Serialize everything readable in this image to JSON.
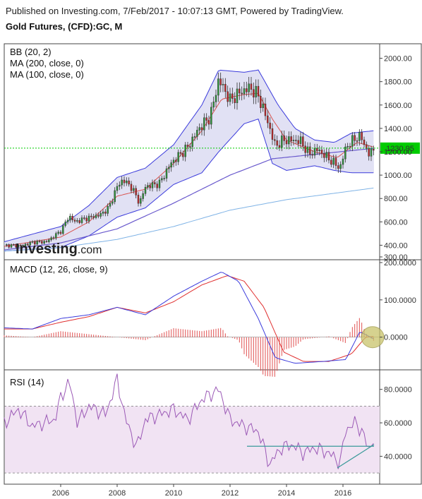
{
  "header": {
    "published": "Published on Investing.com, 7/Feb/2017 - 10:07:13 GMT, Powered by TradingView.",
    "title": "Gold Futures, (CFD):GC, M"
  },
  "watermark": {
    "brand": "Investing",
    "suffix": ".com"
  },
  "colors": {
    "up": "#2e9a3a",
    "down": "#c62828",
    "bb": "#3b3bdc",
    "bbFill": "#dcdcf2",
    "ma200": "#6a5acd",
    "ma100": "#7fb3e6",
    "ma20": "#d9534f",
    "macd": "#3b3bdc",
    "signal": "#e03030",
    "hist": "#e05050",
    "rsi": "#9b59b6",
    "rsiBand": "#f1e3f3",
    "trend": "#3a9a9a",
    "price": "#00cc00",
    "highlight": "#c9c36a"
  },
  "chart_data": [
    {
      "type": "candlestick",
      "legend": [
        "BB (20, 2)",
        "MA (200, close, 0)",
        "MA (100, close, 0)"
      ],
      "ylim": [
        300,
        2100
      ],
      "y_ticks": [
        "2000.00",
        "1800.00",
        "1600.00",
        "1400.00",
        "1200.00",
        "1000.00",
        "800.00",
        "600.00",
        "400.00",
        "300.00"
      ],
      "y_tick_values": [
        2000,
        1800,
        1600,
        1400,
        1200,
        1000,
        800,
        600,
        400,
        300
      ],
      "last_price": "1230.95",
      "last_value": 1230.95,
      "x_range": [
        2004.0,
        2017.2
      ],
      "close_anchors": [
        [
          2004.0,
          400
        ],
        [
          2004.6,
          395
        ],
        [
          2005.0,
          425
        ],
        [
          2005.5,
          430
        ],
        [
          2006.0,
          520
        ],
        [
          2006.3,
          650
        ],
        [
          2006.5,
          600
        ],
        [
          2006.9,
          630
        ],
        [
          2007.4,
          660
        ],
        [
          2007.7,
          720
        ],
        [
          2008.0,
          900
        ],
        [
          2008.2,
          960
        ],
        [
          2008.5,
          900
        ],
        [
          2008.8,
          760
        ],
        [
          2009.0,
          900
        ],
        [
          2009.5,
          930
        ],
        [
          2009.9,
          1100
        ],
        [
          2010.5,
          1240
        ],
        [
          2010.9,
          1400
        ],
        [
          2011.3,
          1500
        ],
        [
          2011.6,
          1820
        ],
        [
          2012.0,
          1640
        ],
        [
          2012.3,
          1700
        ],
        [
          2012.7,
          1750
        ],
        [
          2013.0,
          1680
        ],
        [
          2013.3,
          1480
        ],
        [
          2013.6,
          1250
        ],
        [
          2013.9,
          1300
        ],
        [
          2014.2,
          1300
        ],
        [
          2014.5,
          1290
        ],
        [
          2014.8,
          1180
        ],
        [
          2015.1,
          1220
        ],
        [
          2015.5,
          1140
        ],
        [
          2015.9,
          1060
        ],
        [
          2016.1,
          1240
        ],
        [
          2016.5,
          1330
        ],
        [
          2016.7,
          1310
        ],
        [
          2016.9,
          1170
        ],
        [
          2017.1,
          1230
        ]
      ],
      "ma200_anchors": [
        [
          2004.0,
          350
        ],
        [
          2006.0,
          380
        ],
        [
          2008.0,
          450
        ],
        [
          2010.0,
          560
        ],
        [
          2012.0,
          700
        ],
        [
          2014.0,
          790
        ],
        [
          2017.1,
          890
        ]
      ],
      "ma100_anchors": [
        [
          2004.0,
          360
        ],
        [
          2006.0,
          420
        ],
        [
          2008.0,
          540
        ],
        [
          2010.0,
          760
        ],
        [
          2012.0,
          1000
        ],
        [
          2013.5,
          1140
        ],
        [
          2017.1,
          1230
        ]
      ],
      "bb_upper_anchors": [
        [
          2004.0,
          430
        ],
        [
          2006.0,
          560
        ],
        [
          2007.0,
          740
        ],
        [
          2008.0,
          980
        ],
        [
          2009.0,
          1060
        ],
        [
          2010.0,
          1260
        ],
        [
          2011.0,
          1600
        ],
        [
          2011.6,
          1900
        ],
        [
          2012.5,
          1880
        ],
        [
          2013.0,
          1900
        ],
        [
          2013.7,
          1600
        ],
        [
          2014.3,
          1400
        ],
        [
          2015.0,
          1300
        ],
        [
          2015.7,
          1280
        ],
        [
          2016.3,
          1360
        ],
        [
          2017.1,
          1380
        ]
      ],
      "bb_lower_anchors": [
        [
          2004.0,
          350
        ],
        [
          2006.0,
          380
        ],
        [
          2007.0,
          480
        ],
        [
          2008.0,
          640
        ],
        [
          2009.0,
          720
        ],
        [
          2010.0,
          920
        ],
        [
          2011.0,
          1020
        ],
        [
          2011.6,
          1200
        ],
        [
          2012.5,
          1440
        ],
        [
          2013.0,
          1480
        ],
        [
          2013.5,
          1100
        ],
        [
          2014.0,
          1040
        ],
        [
          2015.0,
          1080
        ],
        [
          2015.7,
          1040
        ],
        [
          2016.3,
          1020
        ],
        [
          2017.1,
          1020
        ]
      ],
      "ma20_anchors": [
        [
          2004.0,
          390
        ],
        [
          2006.0,
          470
        ],
        [
          2007.0,
          600
        ],
        [
          2008.0,
          820
        ],
        [
          2009.0,
          880
        ],
        [
          2010.0,
          1100
        ],
        [
          2011.0,
          1380
        ],
        [
          2011.7,
          1650
        ],
        [
          2012.5,
          1690
        ],
        [
          2013.0,
          1700
        ],
        [
          2013.5,
          1480
        ],
        [
          2014.0,
          1300
        ],
        [
          2015.0,
          1200
        ],
        [
          2015.8,
          1150
        ],
        [
          2016.5,
          1280
        ],
        [
          2017.1,
          1240
        ]
      ]
    },
    {
      "type": "line",
      "legend": [
        "MACD (12, 26, close, 9)"
      ],
      "ylim": [
        -80,
        200
      ],
      "y_ticks": [
        "200.0000",
        "100.0000",
        "0.0000"
      ],
      "y_tick_values": [
        200,
        100,
        0
      ],
      "macd_anchors": [
        [
          2004.0,
          25
        ],
        [
          2005.0,
          22
        ],
        [
          2006.0,
          50
        ],
        [
          2007.0,
          60
        ],
        [
          2008.0,
          80
        ],
        [
          2009.0,
          60
        ],
        [
          2010.0,
          110
        ],
        [
          2011.0,
          150
        ],
        [
          2011.7,
          175
        ],
        [
          2012.3,
          150
        ],
        [
          2013.0,
          50
        ],
        [
          2013.6,
          -55
        ],
        [
          2014.3,
          -70
        ],
        [
          2015.3,
          -65
        ],
        [
          2016.1,
          -60
        ],
        [
          2016.6,
          15
        ],
        [
          2017.1,
          -5
        ]
      ],
      "signal_anchors": [
        [
          2004.0,
          22
        ],
        [
          2005.0,
          22
        ],
        [
          2006.0,
          40
        ],
        [
          2007.0,
          55
        ],
        [
          2008.0,
          80
        ],
        [
          2009.0,
          65
        ],
        [
          2010.0,
          95
        ],
        [
          2011.0,
          140
        ],
        [
          2011.9,
          165
        ],
        [
          2012.5,
          150
        ],
        [
          2013.2,
          80
        ],
        [
          2013.9,
          -40
        ],
        [
          2014.6,
          -65
        ],
        [
          2015.5,
          -65
        ],
        [
          2016.3,
          -45
        ],
        [
          2016.8,
          0
        ],
        [
          2017.1,
          2
        ]
      ],
      "highlight_note": "circled crossover near zero"
    },
    {
      "type": "line",
      "legend": [
        "RSI (14)"
      ],
      "ylim": [
        25,
        90
      ],
      "y_ticks": [
        "80.0000",
        "60.0000",
        "40.0000"
      ],
      "y_tick_values": [
        80,
        60,
        40
      ],
      "band": [
        30,
        70
      ],
      "rsi_anchors": [
        [
          2004.0,
          60
        ],
        [
          2004.5,
          68
        ],
        [
          2005.0,
          58
        ],
        [
          2005.8,
          62
        ],
        [
          2006.0,
          75
        ],
        [
          2006.3,
          85
        ],
        [
          2006.6,
          60
        ],
        [
          2007.0,
          70
        ],
        [
          2007.6,
          65
        ],
        [
          2008.0,
          86
        ],
        [
          2008.3,
          62
        ],
        [
          2008.7,
          45
        ],
        [
          2009.0,
          62
        ],
        [
          2009.5,
          65
        ],
        [
          2010.0,
          68
        ],
        [
          2010.5,
          62
        ],
        [
          2011.0,
          74
        ],
        [
          2011.6,
          80
        ],
        [
          2012.0,
          62
        ],
        [
          2012.5,
          58
        ],
        [
          2013.0,
          55
        ],
        [
          2013.4,
          35
        ],
        [
          2013.8,
          45
        ],
        [
          2014.2,
          47
        ],
        [
          2014.6,
          42
        ],
        [
          2015.0,
          45
        ],
        [
          2015.5,
          42
        ],
        [
          2015.9,
          36
        ],
        [
          2016.1,
          56
        ],
        [
          2016.4,
          60
        ],
        [
          2016.7,
          55
        ],
        [
          2016.9,
          43
        ],
        [
          2017.1,
          52
        ]
      ],
      "trend_lines": [
        [
          [
            2012.6,
            46
          ],
          [
            2017.1,
            46
          ]
        ],
        [
          [
            2015.8,
            33
          ],
          [
            2017.1,
            47
          ]
        ]
      ]
    }
  ],
  "x_axis": {
    "labels": [
      "2006",
      "2008",
      "2010",
      "2012",
      "2014",
      "2016"
    ],
    "values": [
      2006,
      2008,
      2010,
      2012,
      2014,
      2016
    ]
  }
}
